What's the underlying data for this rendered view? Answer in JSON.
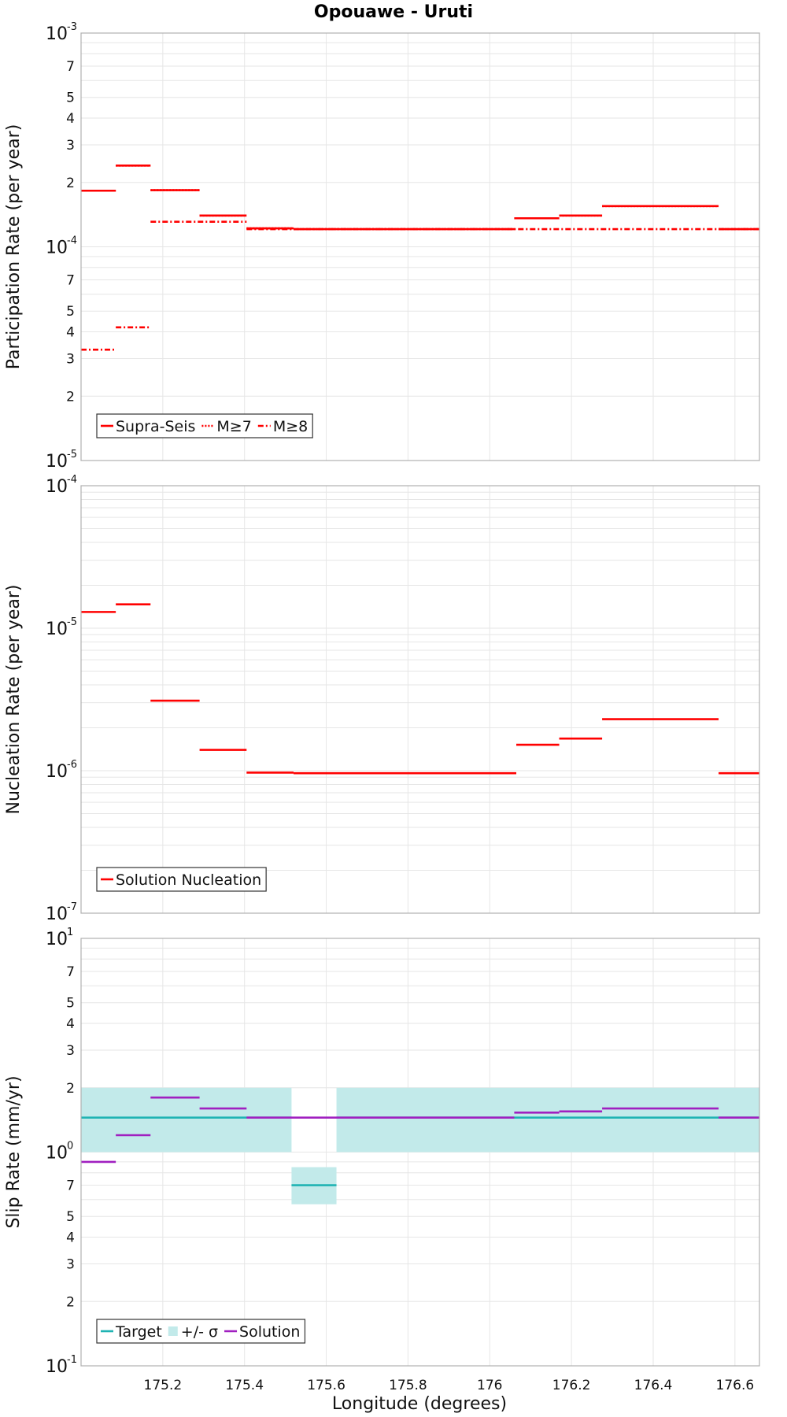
{
  "title": "Opouawe - Uruti",
  "xlabel": "Longitude (degrees)",
  "x_ticks": [
    {
      "value": 175.2,
      "label": "175.2"
    },
    {
      "value": 175.4,
      "label": "175.4"
    },
    {
      "value": 175.6,
      "label": "175.6"
    },
    {
      "value": 175.8,
      "label": "175.8"
    },
    {
      "value": 176.0,
      "label": "176"
    },
    {
      "value": 176.2,
      "label": "176.2"
    },
    {
      "value": 176.4,
      "label": "176.4"
    },
    {
      "value": 176.6,
      "label": "176.6"
    }
  ],
  "chart_data": [
    {
      "type": "line",
      "ylabel": "Participation Rate (per year)",
      "yscale": "log",
      "xlim": [
        175.0,
        176.66
      ],
      "ylim": [
        1e-05,
        0.001
      ],
      "major_ticks": [
        {
          "base": "10",
          "exp": "-5",
          "value": 1e-05
        },
        {
          "base": "10",
          "exp": "-4",
          "value": 0.0001
        },
        {
          "base": "10",
          "exp": "-3",
          "value": 0.001
        }
      ],
      "minor_ticks": [
        {
          "value": 2e-05,
          "label": "2"
        },
        {
          "value": 3e-05,
          "label": "3"
        },
        {
          "value": 4e-05,
          "label": "4"
        },
        {
          "value": 5e-05,
          "label": "5"
        },
        {
          "value": 7e-05,
          "label": "7"
        },
        {
          "value": 0.0002,
          "label": "2"
        },
        {
          "value": 0.0003,
          "label": "3"
        },
        {
          "value": 0.0004,
          "label": "4"
        },
        {
          "value": 0.0005,
          "label": "5"
        },
        {
          "value": 0.0007,
          "label": "7"
        }
      ],
      "legend": [
        {
          "label": "Supra-Seis",
          "style": "solid",
          "color": "#ff0000"
        },
        {
          "label": "M≥7",
          "style": "dotted",
          "color": "#ff0000"
        },
        {
          "label": "M≥8",
          "style": "dashdot",
          "color": "#ff0000"
        }
      ],
      "series": [
        {
          "name": "Supra-Seis",
          "style": "solid",
          "color": "#ff0000",
          "segments": [
            {
              "x0": 175.0,
              "x1": 175.085,
              "y": 0.000183
            },
            {
              "x0": 175.085,
              "x1": 175.17,
              "y": 0.00024
            },
            {
              "x0": 175.17,
              "x1": 175.29,
              "y": 0.000184
            },
            {
              "x0": 175.29,
              "x1": 175.405,
              "y": 0.00014
            },
            {
              "x0": 175.405,
              "x1": 175.52,
              "y": 0.000122
            },
            {
              "x0": 175.52,
              "x1": 176.06,
              "y": 0.000121
            },
            {
              "x0": 176.06,
              "x1": 176.17,
              "y": 0.000136
            },
            {
              "x0": 176.17,
              "x1": 176.275,
              "y": 0.00014
            },
            {
              "x0": 176.275,
              "x1": 176.56,
              "y": 0.000155
            },
            {
              "x0": 176.56,
              "x1": 176.66,
              "y": 0.000121
            }
          ]
        },
        {
          "name": "M≥7",
          "style": "dotted",
          "color": "#ff0000",
          "segments": [
            {
              "x0": 175.0,
              "x1": 175.085,
              "y": 0.000183
            },
            {
              "x0": 175.085,
              "x1": 175.17,
              "y": 0.00024
            },
            {
              "x0": 175.17,
              "x1": 175.29,
              "y": 0.000184
            },
            {
              "x0": 175.29,
              "x1": 175.405,
              "y": 0.00014
            },
            {
              "x0": 175.405,
              "x1": 175.52,
              "y": 0.000122
            },
            {
              "x0": 175.52,
              "x1": 176.06,
              "y": 0.000121
            },
            {
              "x0": 176.06,
              "x1": 176.17,
              "y": 0.000136
            },
            {
              "x0": 176.17,
              "x1": 176.275,
              "y": 0.00014
            },
            {
              "x0": 176.275,
              "x1": 176.56,
              "y": 0.000155
            },
            {
              "x0": 176.56,
              "x1": 176.66,
              "y": 0.000121
            }
          ]
        },
        {
          "name": "M≥8",
          "style": "dashdot",
          "color": "#ff0000",
          "segments": [
            {
              "x0": 175.0,
              "x1": 175.085,
              "y": 3.3e-05
            },
            {
              "x0": 175.085,
              "x1": 175.17,
              "y": 4.2e-05
            },
            {
              "x0": 175.17,
              "x1": 175.405,
              "y": 0.000131
            },
            {
              "x0": 175.405,
              "x1": 176.66,
              "y": 0.000121
            }
          ]
        }
      ]
    },
    {
      "type": "line",
      "ylabel": "Nucleation Rate (per year)",
      "yscale": "log",
      "xlim": [
        175.0,
        176.66
      ],
      "ylim": [
        1e-07,
        0.0001
      ],
      "major_ticks": [
        {
          "base": "10",
          "exp": "-7",
          "value": 1e-07
        },
        {
          "base": "10",
          "exp": "-6",
          "value": 1e-06
        },
        {
          "base": "10",
          "exp": "-5",
          "value": 1e-05
        },
        {
          "base": "10",
          "exp": "-4",
          "value": 0.0001
        }
      ],
      "minor_ticks": [],
      "legend": [
        {
          "label": "Solution Nucleation",
          "style": "solid",
          "color": "#ff0000"
        }
      ],
      "series": [
        {
          "name": "Solution Nucleation",
          "style": "solid",
          "color": "#ff0000",
          "segments": [
            {
              "x0": 175.0,
              "x1": 175.085,
              "y": 1.3e-05
            },
            {
              "x0": 175.085,
              "x1": 175.17,
              "y": 1.47e-05
            },
            {
              "x0": 175.17,
              "x1": 175.29,
              "y": 3.1e-06
            },
            {
              "x0": 175.29,
              "x1": 175.405,
              "y": 1.4e-06
            },
            {
              "x0": 175.405,
              "x1": 175.52,
              "y": 9.7e-07
            },
            {
              "x0": 175.52,
              "x1": 176.065,
              "y": 9.6e-07
            },
            {
              "x0": 176.065,
              "x1": 176.17,
              "y": 1.52e-06
            },
            {
              "x0": 176.17,
              "x1": 176.275,
              "y": 1.68e-06
            },
            {
              "x0": 176.275,
              "x1": 176.56,
              "y": 2.3e-06
            },
            {
              "x0": 176.56,
              "x1": 176.66,
              "y": 9.6e-07
            }
          ]
        }
      ]
    },
    {
      "type": "line",
      "ylabel": "Slip Rate (mm/yr)",
      "yscale": "log",
      "xlim": [
        175.0,
        176.66
      ],
      "ylim": [
        0.1,
        10
      ],
      "major_ticks": [
        {
          "base": "10",
          "exp": "-1",
          "value": 0.1
        },
        {
          "base": "10",
          "exp": "0",
          "value": 1
        },
        {
          "base": "10",
          "exp": "1",
          "value": 10
        }
      ],
      "minor_ticks": [
        {
          "value": 0.2,
          "label": "2"
        },
        {
          "value": 0.3,
          "label": "3"
        },
        {
          "value": 0.4,
          "label": "4"
        },
        {
          "value": 0.5,
          "label": "5"
        },
        {
          "value": 0.7,
          "label": "7"
        },
        {
          "value": 2,
          "label": "2"
        },
        {
          "value": 3,
          "label": "3"
        },
        {
          "value": 4,
          "label": "4"
        },
        {
          "value": 5,
          "label": "5"
        },
        {
          "value": 7,
          "label": "7"
        }
      ],
      "legend": [
        {
          "label": "Target",
          "style": "solid",
          "color": "#1fb3b3"
        },
        {
          "label": "+/- σ",
          "style": "band",
          "color": "#c2eaea"
        },
        {
          "label": "Solution",
          "style": "solid",
          "color": "#a020c0"
        }
      ],
      "bands": [
        {
          "x0": 175.0,
          "x1": 175.515,
          "y0": 1.0,
          "y1": 2.0,
          "color": "#c2eaea"
        },
        {
          "x0": 175.515,
          "x1": 175.625,
          "y0": 0.57,
          "y1": 0.85,
          "color": "#c2eaea"
        },
        {
          "x0": 175.625,
          "x1": 176.66,
          "y0": 1.0,
          "y1": 2.0,
          "color": "#c2eaea"
        }
      ],
      "series": [
        {
          "name": "Target",
          "style": "solid",
          "color": "#1fb3b3",
          "segments": [
            {
              "x0": 175.0,
              "x1": 175.515,
              "y": 1.45
            },
            {
              "x0": 175.515,
              "x1": 175.625,
              "y": 0.7
            },
            {
              "x0": 175.625,
              "x1": 176.66,
              "y": 1.45
            }
          ]
        },
        {
          "name": "Solution",
          "style": "solid",
          "color": "#a020c0",
          "segments": [
            {
              "x0": 175.0,
              "x1": 175.085,
              "y": 0.9
            },
            {
              "x0": 175.085,
              "x1": 175.17,
              "y": 1.2
            },
            {
              "x0": 175.17,
              "x1": 175.29,
              "y": 1.8
            },
            {
              "x0": 175.29,
              "x1": 175.405,
              "y": 1.6
            },
            {
              "x0": 175.405,
              "x1": 176.06,
              "y": 1.45
            },
            {
              "x0": 176.06,
              "x1": 176.17,
              "y": 1.53
            },
            {
              "x0": 176.17,
              "x1": 176.275,
              "y": 1.55
            },
            {
              "x0": 176.275,
              "x1": 176.56,
              "y": 1.6
            },
            {
              "x0": 176.56,
              "x1": 176.66,
              "y": 1.45
            }
          ]
        }
      ]
    }
  ]
}
